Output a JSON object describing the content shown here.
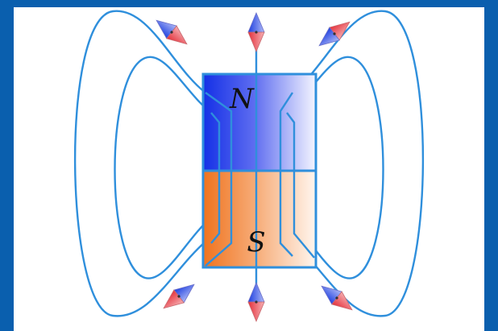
{
  "diagram": {
    "north_label": "N",
    "south_label": "S"
  },
  "colors": {
    "frame": "#0a5fae",
    "canvas": "#ffffff",
    "field_line": "#2f8fdc",
    "north_dark": "#1430e6",
    "north_light": "#eef0ff",
    "south_dark": "#f0731e",
    "south_light": "#fff4ec",
    "needle_north": "#1c3fe0",
    "needle_south": "#e4303a"
  },
  "compasses": [
    {
      "id": "top-left"
    },
    {
      "id": "top-center"
    },
    {
      "id": "top-right"
    },
    {
      "id": "bottom-left"
    },
    {
      "id": "bottom-center"
    },
    {
      "id": "bottom-right"
    }
  ]
}
